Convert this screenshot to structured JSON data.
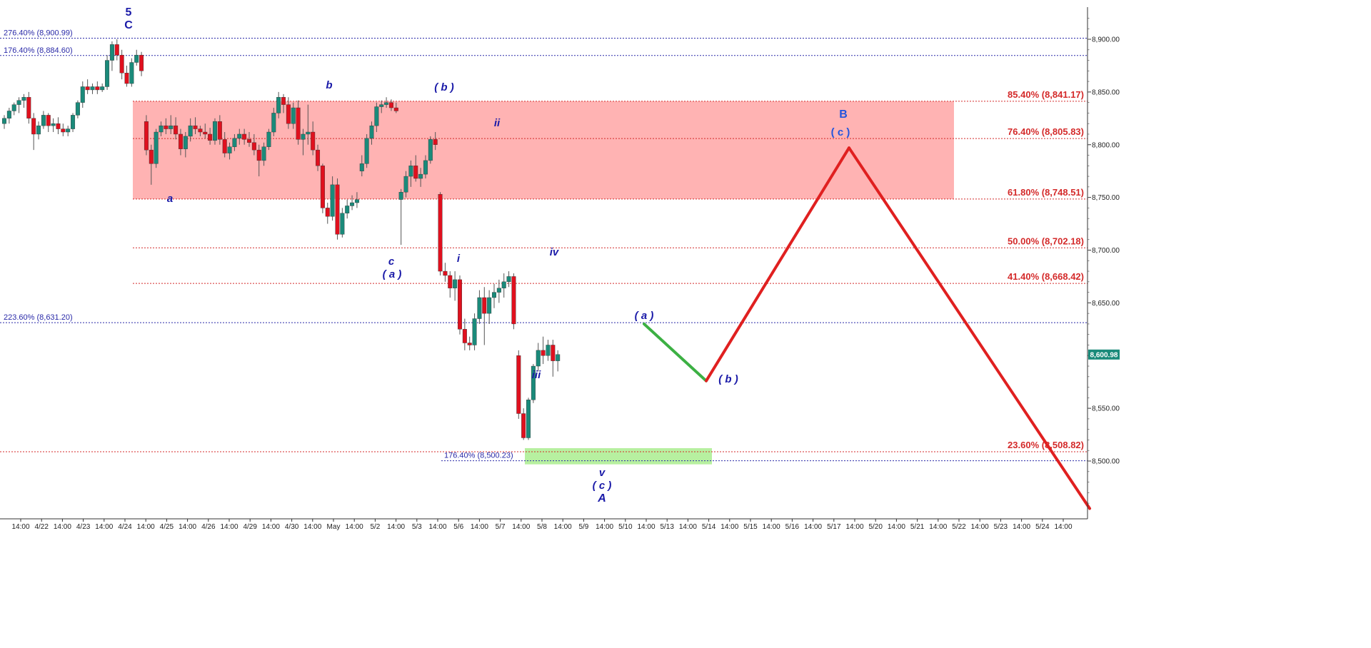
{
  "chart_data": {
    "type": "candlestick",
    "title": "",
    "xlabel": "",
    "ylabel": "",
    "ylim": [
      8450,
      8925
    ],
    "y_ticks": [
      8500,
      8550,
      8600,
      8650,
      8700,
      8750,
      8800,
      8850,
      8900
    ],
    "y_tick_labels": [
      "8,500.00",
      "8,550.00",
      "8,600.00",
      "8,650.00",
      "8,700.00",
      "8,750.00",
      "8,800.00",
      "8,850.00",
      "8,900.00"
    ],
    "x_tick_labels": [
      "14:00",
      "4/22",
      "14:00",
      "4/23",
      "14:00",
      "4/24",
      "14:00",
      "4/25",
      "14:00",
      "4/26",
      "14:00",
      "4/29",
      "14:00",
      "4/30",
      "14:00",
      "May",
      "14:00",
      "5/2",
      "14:00",
      "5/3",
      "14:00",
      "5/6",
      "14:00",
      "5/7",
      "14:00",
      "5/8",
      "14:00",
      "5/9",
      "14:00",
      "5/10",
      "14:00",
      "5/13",
      "14:00",
      "5/14",
      "14:00",
      "5/15",
      "14:00",
      "5/16",
      "14:00",
      "5/17",
      "14:00",
      "5/20",
      "14:00",
      "5/21",
      "14:00",
      "5/22",
      "14:00",
      "5/23",
      "14:00",
      "5/24",
      "14:00"
    ],
    "current_price": 8600.98,
    "current_price_label": "8,600.98",
    "up_color": "#1a8a7a",
    "down_color": "#e0101e",
    "fib_levels_red": [
      {
        "label": "85.40% (8,841.17)",
        "value": 8841.17
      },
      {
        "label": "76.40% (8,805.83)",
        "value": 8805.83
      },
      {
        "label": "61.80% (8,748.51)",
        "value": 8748.51
      },
      {
        "label": "50.00% (8,702.18)",
        "value": 8702.18
      },
      {
        "label": "41.40% (8,668.42)",
        "value": 8668.42
      },
      {
        "label": "23.60% (8,508.82)",
        "value": 8508.82
      }
    ],
    "fib_levels_blue": [
      {
        "label": "276.40% (8,900.99)",
        "value": 8900.99
      },
      {
        "label": "176.40% (8,884.60)",
        "value": 8884.6
      },
      {
        "label": "223.60% (8,631.20)",
        "value": 8631.2
      },
      {
        "label": "176.40% (8,500.23)",
        "value": 8500.23
      }
    ],
    "resistance_zone": {
      "low": 8748.51,
      "high": 8841.17,
      "color": "#ffb3b3"
    },
    "support_zone": {
      "low": 8500.23,
      "high": 8508.82,
      "color": "#b7f0a0"
    },
    "projection": [
      {
        "value": 8630,
        "color": "#e02020"
      },
      {
        "value": 8576,
        "color": "#3cb043"
      },
      {
        "value": 8797,
        "color": "#e02020"
      },
      {
        "value": 8455,
        "color": "#e02020"
      }
    ],
    "wave_labels": [
      "5",
      "C",
      "a",
      "b",
      "c",
      "( a )",
      "( b )",
      "i",
      "ii",
      "iii",
      "iv",
      "v",
      "( c )",
      "A",
      "( a )",
      "( b )",
      "B",
      "( c )"
    ],
    "candles": [
      [
        8820,
        8828,
        8815,
        8825
      ],
      [
        8825,
        8835,
        8820,
        8832
      ],
      [
        8832,
        8840,
        8828,
        8838
      ],
      [
        8838,
        8845,
        8830,
        8842
      ],
      [
        8842,
        8848,
        8835,
        8845
      ],
      [
        8845,
        8850,
        8820,
        8825
      ],
      [
        8825,
        8830,
        8795,
        8810
      ],
      [
        8810,
        8822,
        8805,
        8818
      ],
      [
        8818,
        8832,
        8815,
        8828
      ],
      [
        8828,
        8830,
        8812,
        8818
      ],
      [
        8818,
        8825,
        8812,
        8820
      ],
      [
        8820,
        8826,
        8810,
        8815
      ],
      [
        8815,
        8820,
        8808,
        8812
      ],
      [
        8812,
        8818,
        8808,
        8815
      ],
      [
        8815,
        8830,
        8812,
        8828
      ],
      [
        8828,
        8842,
        8825,
        8840
      ],
      [
        8840,
        8860,
        8835,
        8855
      ],
      [
        8855,
        8862,
        8848,
        8852
      ],
      [
        8852,
        8858,
        8848,
        8855
      ],
      [
        8855,
        8860,
        8848,
        8852
      ],
      [
        8852,
        8858,
        8850,
        8855
      ],
      [
        8855,
        8885,
        8852,
        8880
      ],
      [
        8880,
        8898,
        8870,
        8895
      ],
      [
        8895,
        8900,
        8880,
        8885
      ],
      [
        8885,
        8890,
        8862,
        8868
      ],
      [
        8868,
        8875,
        8855,
        8858
      ],
      [
        8858,
        8882,
        8855,
        8878
      ],
      [
        8878,
        8890,
        8875,
        8885
      ],
      [
        8885,
        8888,
        8865,
        8870
      ],
      [
        8822,
        8828,
        8790,
        8795
      ],
      [
        8795,
        8800,
        8762,
        8782
      ],
      [
        8782,
        8815,
        8778,
        8812
      ],
      [
        8812,
        8822,
        8808,
        8818
      ],
      [
        8818,
        8825,
        8810,
        8815
      ],
      [
        8815,
        8828,
        8810,
        8818
      ],
      [
        8818,
        8826,
        8805,
        8810
      ],
      [
        8810,
        8815,
        8790,
        8796
      ],
      [
        8796,
        8812,
        8788,
        8808
      ],
      [
        8808,
        8825,
        8803,
        8818
      ],
      [
        8818,
        8826,
        8810,
        8815
      ],
      [
        8815,
        8818,
        8808,
        8812
      ],
      [
        8812,
        8820,
        8806,
        8810
      ],
      [
        8810,
        8816,
        8800,
        8804
      ],
      [
        8804,
        8825,
        8800,
        8822
      ],
      [
        8822,
        8828,
        8800,
        8805
      ],
      [
        8805,
        8812,
        8788,
        8792
      ],
      [
        8792,
        8802,
        8786,
        8798
      ],
      [
        8798,
        8810,
        8794,
        8806
      ],
      [
        8806,
        8815,
        8800,
        8810
      ],
      [
        8810,
        8815,
        8800,
        8805
      ],
      [
        8805,
        8812,
        8798,
        8802
      ],
      [
        8802,
        8810,
        8790,
        8795
      ],
      [
        8795,
        8800,
        8770,
        8785
      ],
      [
        8785,
        8802,
        8780,
        8798
      ],
      [
        8798,
        8815,
        8795,
        8812
      ],
      [
        8812,
        8835,
        8808,
        8830
      ],
      [
        8830,
        8850,
        8825,
        8845
      ],
      [
        8845,
        8848,
        8830,
        8838
      ],
      [
        8838,
        8845,
        8815,
        8820
      ],
      [
        8820,
        8840,
        8815,
        8835
      ],
      [
        8835,
        8842,
        8800,
        8805
      ],
      [
        8805,
        8815,
        8790,
        8810
      ],
      [
        8810,
        8838,
        8800,
        8812
      ],
      [
        8812,
        8822,
        8790,
        8795
      ],
      [
        8795,
        8800,
        8775,
        8780
      ],
      [
        8780,
        8782,
        8735,
        8740
      ],
      [
        8740,
        8745,
        8725,
        8732
      ],
      [
        8732,
        8770,
        8728,
        8762
      ],
      [
        8762,
        8768,
        8710,
        8715
      ],
      [
        8715,
        8740,
        8712,
        8735
      ],
      [
        8735,
        8748,
        8730,
        8742
      ],
      [
        8742,
        8752,
        8738,
        8745
      ],
      [
        8745,
        8755,
        8740,
        8748
      ],
      [
        8775,
        8790,
        8770,
        8782
      ],
      [
        8782,
        8810,
        8778,
        8806
      ],
      [
        8806,
        8822,
        8800,
        8818
      ],
      [
        8818,
        8840,
        8812,
        8836
      ],
      [
        8836,
        8842,
        8830,
        8838
      ],
      [
        8838,
        8845,
        8835,
        8840
      ],
      [
        8840,
        8843,
        8832,
        8835
      ],
      [
        8835,
        8840,
        8830,
        8832
      ],
      [
        8748,
        8758,
        8705,
        8755
      ],
      [
        8755,
        8775,
        8750,
        8770
      ],
      [
        8770,
        8785,
        8760,
        8780
      ],
      [
        8780,
        8790,
        8765,
        8768
      ],
      [
        8768,
        8778,
        8760,
        8772
      ],
      [
        8772,
        8790,
        8768,
        8785
      ],
      [
        8785,
        8808,
        8782,
        8805
      ],
      [
        8805,
        8812,
        8795,
        8800
      ],
      [
        8753,
        8755,
        8676,
        8680
      ],
      [
        8680,
        8688,
        8670,
        8676
      ],
      [
        8676,
        8680,
        8655,
        8664
      ],
      [
        8664,
        8680,
        8652,
        8672
      ],
      [
        8672,
        8676,
        8620,
        8625
      ],
      [
        8625,
        8635,
        8605,
        8612
      ],
      [
        8612,
        8618,
        8605,
        8610
      ],
      [
        8610,
        8640,
        8605,
        8635
      ],
      [
        8635,
        8662,
        8630,
        8655
      ],
      [
        8655,
        8665,
        8610,
        8640
      ],
      [
        8640,
        8662,
        8630,
        8655
      ],
      [
        8655,
        8668,
        8645,
        8660
      ],
      [
        8660,
        8672,
        8650,
        8664
      ],
      [
        8664,
        8678,
        8655,
        8670
      ],
      [
        8670,
        8680,
        8665,
        8675
      ],
      [
        8675,
        8678,
        8625,
        8630
      ],
      [
        8600,
        8605,
        8540,
        8545
      ],
      [
        8545,
        8550,
        8520,
        8522
      ],
      [
        8522,
        8560,
        8520,
        8558
      ],
      [
        8558,
        8592,
        8555,
        8590
      ],
      [
        8590,
        8612,
        8585,
        8605
      ],
      [
        8605,
        8618,
        8592,
        8600
      ],
      [
        8600,
        8615,
        8595,
        8610
      ],
      [
        8610,
        8615,
        8580,
        8595
      ],
      [
        8595,
        8605,
        8585,
        8601
      ]
    ]
  }
}
